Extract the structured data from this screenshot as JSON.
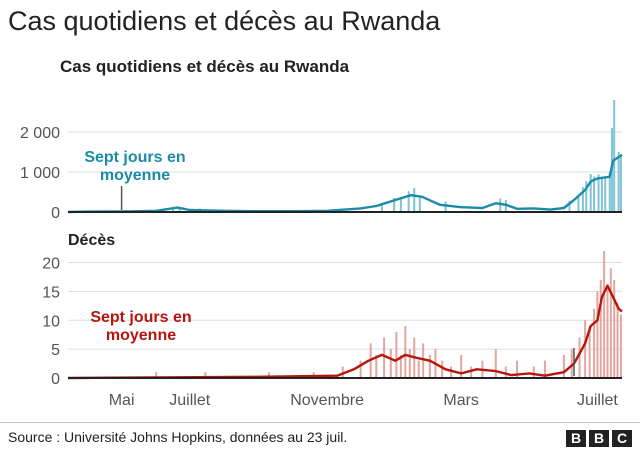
{
  "page_title": "Cas quotidiens et décès au Rwanda",
  "source": "Source : Université Johns Hopkins, données au 23 juil.",
  "logo_letters": [
    "B",
    "B",
    "C"
  ],
  "colors": {
    "cases_line": "#1b8ca8",
    "cases_bar": "#7fc3d6",
    "deaths_line": "#b5160e",
    "deaths_bar": "#e3a59e",
    "grid": "#dddddd",
    "axis": "#222222",
    "annotation_pointer": "#555555"
  },
  "x_axis": {
    "ticks": [
      {
        "label": "Mai",
        "date": "2020-05-01"
      },
      {
        "label": "Juillet",
        "date": "2020-07-01"
      },
      {
        "label": "Novembre",
        "date": "2020-11-01"
      },
      {
        "label": "Mars",
        "date": "2021-03-01"
      },
      {
        "label": "Juillet",
        "date": "2021-07-01"
      }
    ]
  },
  "chart_data": [
    {
      "type": "line",
      "title": "Cas quotidiens et décès au Rwanda",
      "ylim": [
        0,
        2800
      ],
      "yticks": [
        {
          "value": 0,
          "label": "0"
        },
        {
          "value": 1000,
          "label": "1 000"
        },
        {
          "value": 2000,
          "label": "2 000"
        }
      ],
      "xlim": [
        "2020-03-14",
        "2021-07-23"
      ],
      "grid": true,
      "annotation": {
        "lines": [
          "Sept jours en",
          "moyenne"
        ],
        "date": "2020-05-01"
      },
      "series": [
        {
          "style": "bars",
          "x": [
            "2020-05-31",
            "2020-06-16",
            "2020-06-22",
            "2020-07-10",
            "2020-10-25",
            "2020-12-20",
            "2020-12-31",
            "2021-01-06",
            "2021-01-13",
            "2021-01-18",
            "2021-01-23",
            "2021-02-15",
            "2021-04-05",
            "2021-04-10",
            "2021-06-06",
            "2021-06-14",
            "2021-06-18",
            "2021-06-21",
            "2021-06-25",
            "2021-06-28",
            "2021-07-02",
            "2021-07-05",
            "2021-07-08",
            "2021-07-12",
            "2021-07-14",
            "2021-07-16",
            "2021-07-20",
            "2021-07-22"
          ],
          "y": [
            50,
            70,
            120,
            90,
            50,
            230,
            350,
            380,
            520,
            600,
            370,
            260,
            340,
            300,
            280,
            390,
            620,
            770,
            950,
            890,
            940,
            850,
            880,
            990,
            2100,
            2800,
            1500,
            1420
          ]
        },
        {
          "style": "line",
          "x": [
            "2020-03-14",
            "2020-04-01",
            "2020-05-01",
            "2020-06-01",
            "2020-06-20",
            "2020-07-01",
            "2020-08-01",
            "2020-09-01",
            "2020-10-01",
            "2020-11-01",
            "2020-12-01",
            "2020-12-15",
            "2021-01-01",
            "2021-01-15",
            "2021-01-25",
            "2021-02-10",
            "2021-03-01",
            "2021-03-20",
            "2021-04-01",
            "2021-04-10",
            "2021-04-20",
            "2021-05-05",
            "2021-05-20",
            "2021-06-01",
            "2021-06-10",
            "2021-06-20",
            "2021-06-25",
            "2021-07-01",
            "2021-07-12",
            "2021-07-15",
            "2021-07-23"
          ],
          "y": [
            0,
            10,
            12,
            30,
            110,
            50,
            30,
            20,
            20,
            30,
            90,
            150,
            300,
            420,
            380,
            180,
            120,
            100,
            220,
            180,
            80,
            90,
            60,
            100,
            300,
            550,
            760,
            840,
            880,
            1280,
            1430
          ]
        }
      ]
    },
    {
      "type": "line",
      "title": "Décès",
      "ylim": [
        0,
        22
      ],
      "yticks": [
        {
          "value": 0,
          "label": "0"
        },
        {
          "value": 5,
          "label": "5"
        },
        {
          "value": 10,
          "label": "10"
        },
        {
          "value": 15,
          "label": "15"
        },
        {
          "value": 20,
          "label": "20"
        }
      ],
      "xlim": [
        "2020-03-14",
        "2021-07-23"
      ],
      "grid": true,
      "annotation": {
        "lines": [
          "Sept jours en",
          "moyenne"
        ],
        "date": "2021-06-10"
      },
      "series": [
        {
          "style": "bars",
          "x": [
            "2020-06-01",
            "2020-07-15",
            "2020-09-10",
            "2020-10-20",
            "2020-11-15",
            "2020-12-01",
            "2020-12-10",
            "2020-12-15",
            "2020-12-22",
            "2020-12-28",
            "2021-01-02",
            "2021-01-06",
            "2021-01-10",
            "2021-01-14",
            "2021-01-18",
            "2021-01-22",
            "2021-01-26",
            "2021-02-01",
            "2021-02-06",
            "2021-02-12",
            "2021-02-20",
            "2021-03-01",
            "2021-03-10",
            "2021-03-20",
            "2021-04-01",
            "2021-04-10",
            "2021-04-20",
            "2021-05-05",
            "2021-05-15",
            "2021-06-01",
            "2021-06-08",
            "2021-06-15",
            "2021-06-20",
            "2021-06-24",
            "2021-06-28",
            "2021-07-01",
            "2021-07-04",
            "2021-07-07",
            "2021-07-10",
            "2021-07-13",
            "2021-07-16",
            "2021-07-19",
            "2021-07-22"
          ],
          "y": [
            1,
            1,
            1,
            1,
            2,
            3,
            6,
            4,
            7,
            5,
            8,
            4,
            9,
            5,
            7,
            3,
            6,
            4,
            5,
            3,
            2,
            4,
            2,
            3,
            5,
            2,
            3,
            2,
            3,
            4,
            5,
            7,
            10,
            9,
            12,
            15,
            17,
            22,
            16,
            19,
            17,
            13,
            11
          ]
        },
        {
          "style": "line",
          "x": [
            "2020-03-14",
            "2020-06-01",
            "2020-09-01",
            "2020-11-10",
            "2020-11-25",
            "2020-12-08",
            "2020-12-20",
            "2021-01-01",
            "2021-01-10",
            "2021-01-20",
            "2021-02-01",
            "2021-02-15",
            "2021-03-01",
            "2021-03-15",
            "2021-04-01",
            "2021-04-15",
            "2021-05-01",
            "2021-05-15",
            "2021-06-01",
            "2021-06-10",
            "2021-06-20",
            "2021-06-25",
            "2021-07-01",
            "2021-07-05",
            "2021-07-10",
            "2021-07-15",
            "2021-07-20",
            "2021-07-23"
          ],
          "y": [
            0,
            0.1,
            0.2,
            0.4,
            1.5,
            3,
            4,
            3,
            4,
            3.5,
            3,
            1.5,
            0.8,
            1.5,
            1.2,
            0.5,
            0.8,
            0.4,
            1,
            2.5,
            6,
            9,
            10,
            14,
            16,
            14,
            12,
            11.5
          ]
        }
      ]
    }
  ]
}
